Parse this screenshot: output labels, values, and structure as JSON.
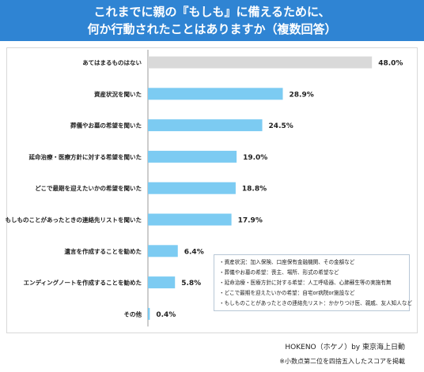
{
  "title": {
    "line1": "これまでに親の『もしも』に備えるために、",
    "line2": "何か行動されたことはありますか（複数回答）"
  },
  "chart_data": {
    "type": "bar",
    "orientation": "horizontal",
    "categories": [
      "あてはまるものはない",
      "資産状況を聞いた",
      "葬儀やお墓の希望を聞いた",
      "延命治療・医療方針に対する希望を聞いた",
      "どこで最期を迎えたいかの希望を聞いた",
      "もしものことがあったときの連絡先リストを聞いた",
      "遺言を作成することを勧めた",
      "エンディングノートを作成することを勧めた",
      "その他"
    ],
    "values": [
      48.0,
      28.9,
      24.5,
      19.0,
      18.8,
      17.9,
      6.4,
      5.8,
      0.4
    ],
    "value_labels": [
      "48.0%",
      "28.9%",
      "24.5%",
      "19.0%",
      "18.8%",
      "17.9%",
      "6.4%",
      "5.8%",
      "0.4%"
    ],
    "xlim": [
      0,
      60
    ],
    "grid": false,
    "colors": {
      "highlight_none": "#d9d9d9",
      "bar": "#7ccbf2"
    }
  },
  "notes": [
    "・資産状況：加入保険、口座保有金融機関、その金額など",
    "・葬儀やお墓の希望：喪主、場所、形式の希望など",
    "・延命治療・医療方針に対する希望：人工呼吸器、心肺蘇生等の実施有無",
    "・どこで最期を迎えたいかの希望：自宅or病院or施設など",
    "・もしものことがあったときの連絡先リスト：かかりつけ医、親戚、友人知人など"
  ],
  "credit": "HOKENO（ホケノ）by 東京海上日動",
  "footnote": "※小数点第二位を四捨五入したスコアを掲載"
}
